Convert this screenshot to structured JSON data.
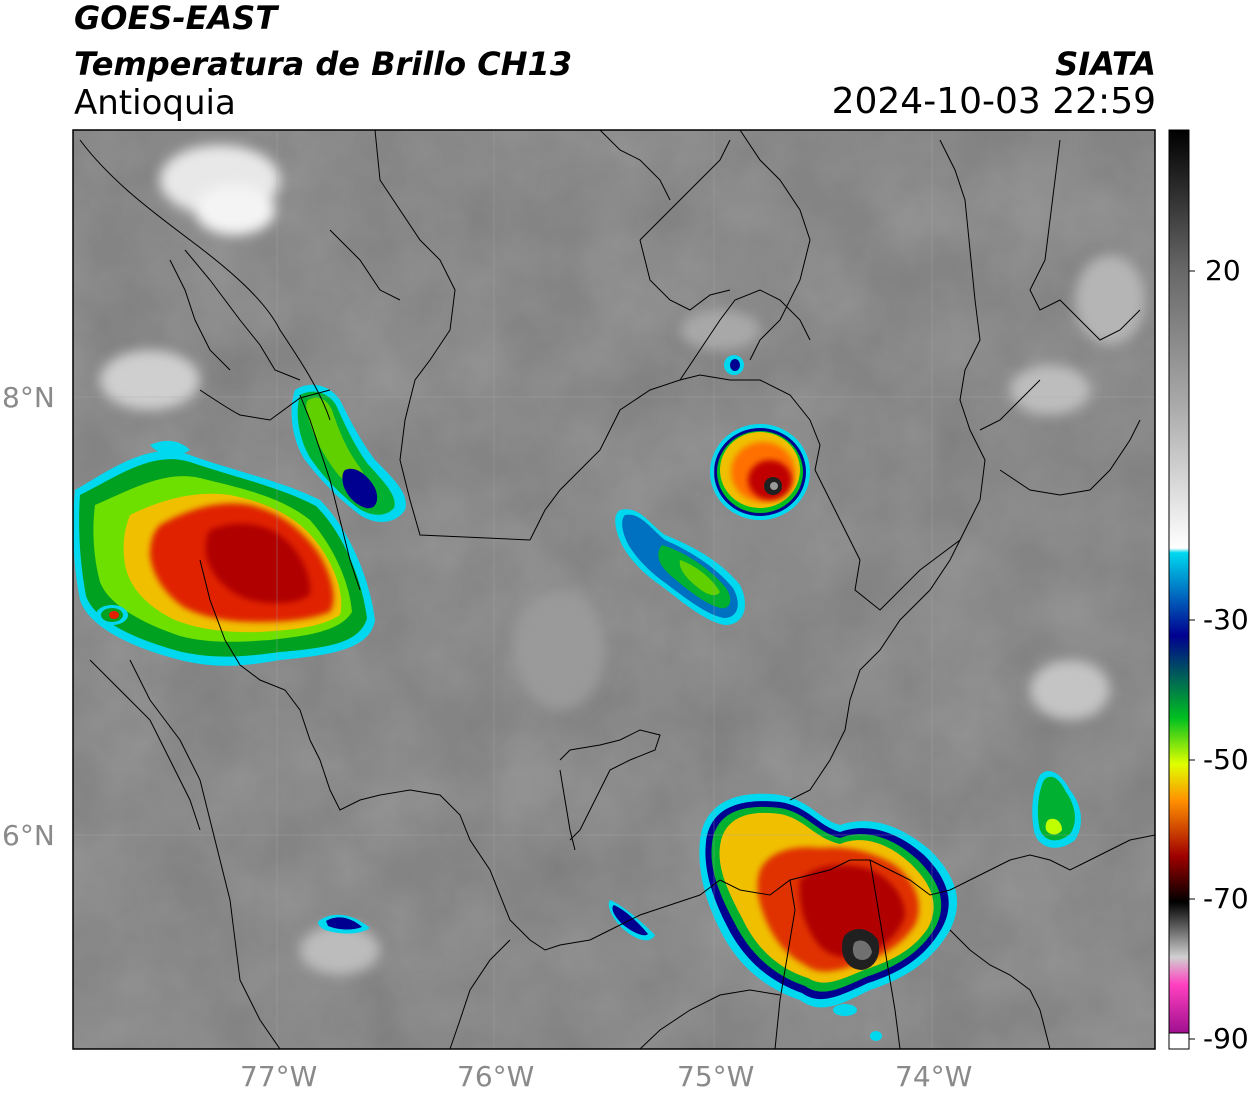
{
  "header": {
    "title_line1": "GOES-EAST",
    "title_line2": "Temperatura de Brillo CH13",
    "region": "Antioquia",
    "organization": "SIATA",
    "datetime": "2024-10-03 22:59"
  },
  "map": {
    "lat_ticks": [
      "8°N",
      "6°N"
    ],
    "lon_ticks": [
      "77°W",
      "76°W",
      "75°W",
      "74°W"
    ],
    "background": "grayscale infrared cloud-top temperature"
  },
  "colorbar": {
    "ticks": [
      "20",
      "-30",
      "-50",
      "-70",
      "-90"
    ],
    "stops": [
      {
        "value": 30,
        "color": "#000000"
      },
      {
        "value": 15,
        "color": "#777777"
      },
      {
        "value": -15,
        "color": "#ffffff"
      },
      {
        "value": -20,
        "color": "#00d8f0"
      },
      {
        "value": -30,
        "color": "#000090"
      },
      {
        "value": -40,
        "color": "#00c020"
      },
      {
        "value": -48,
        "color": "#e0ff00"
      },
      {
        "value": -55,
        "color": "#ff9000"
      },
      {
        "value": -65,
        "color": "#a00000"
      },
      {
        "value": -70,
        "color": "#000000"
      },
      {
        "value": -80,
        "color": "#d0d0d0"
      },
      {
        "value": -82,
        "color": "#ff40c0"
      },
      {
        "value": -90,
        "color": "#800080"
      }
    ],
    "colors": {
      "warm_black": "#000000",
      "cold_cyan": "#00d8f0",
      "blue": "#000090",
      "green": "#00c020",
      "yellow": "#e0ff00",
      "orange": "#ff9000",
      "red": "#d00000",
      "magenta": "#ff40c0",
      "purple": "#800080"
    }
  }
}
